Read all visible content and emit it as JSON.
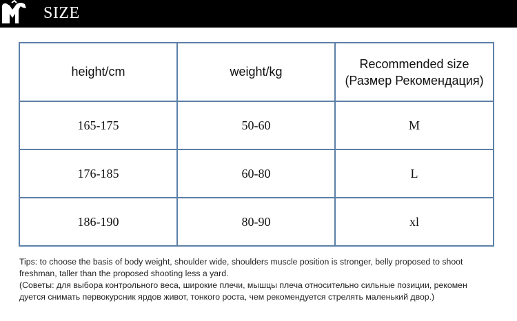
{
  "banner": {
    "title": "SIZE",
    "logo_letters": "M"
  },
  "table": {
    "headers": {
      "height": "height/cm",
      "weight": "weight/kg",
      "size_line1": "Recommended size",
      "size_line2": "(Размер Рекомендация)"
    },
    "rows": [
      {
        "height": "165-175",
        "weight": "50-60",
        "size": "M"
      },
      {
        "height": "176-185",
        "weight": "60-80",
        "size": "L"
      },
      {
        "height": "186-190",
        "weight": "80-90",
        "size": "xl"
      }
    ]
  },
  "tips": {
    "english": "Tips: to choose the basis of body weight, shoulder wide, shoulders muscle position is stronger, belly proposed to shoot freshman, taller than the proposed shooting less a yard.",
    "russian": "(Советы: для выбора контрольного веса, широкие плечи, мышцы плеча относительно сильные позиции, рекомен дуется снимать первокурсник ярдов живот, тонкого роста, чем рекомендуется стрелять маленький двор.)"
  },
  "colors": {
    "banner_bg": "#000000",
    "table_border": "#5c80a8"
  }
}
